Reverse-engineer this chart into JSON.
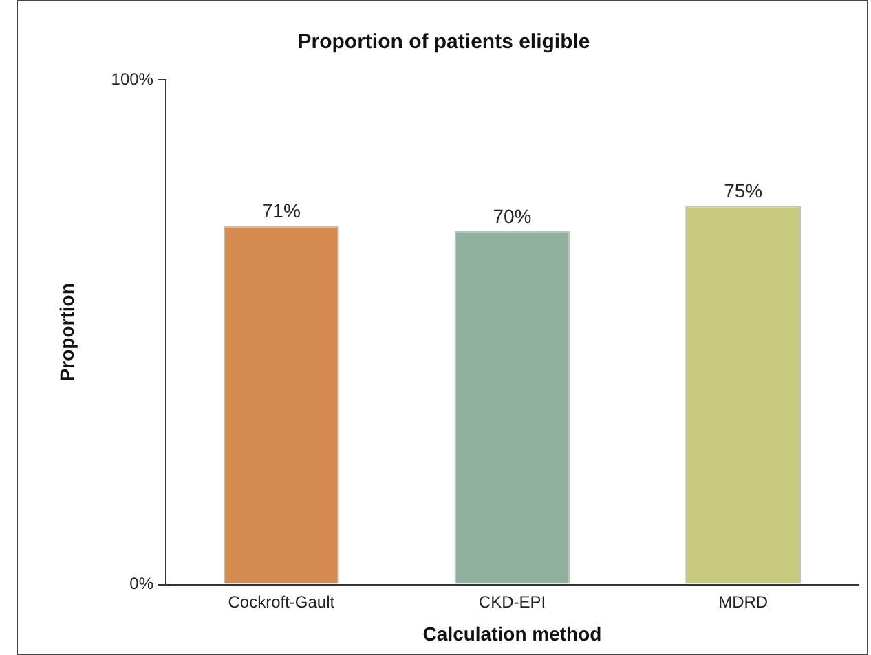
{
  "chart_data": {
    "type": "bar",
    "title": "Proportion of patients eligible",
    "xlabel": "Calculation method",
    "ylabel": "Proportion",
    "categories": [
      "Cockroft-Gault",
      "CKD-EPI",
      "MDRD"
    ],
    "values": [
      71,
      70,
      75
    ],
    "colors": [
      "#d68c4e",
      "#8fb09d",
      "#c8ca80"
    ],
    "value_labels": [
      "71%",
      "70%",
      "75%"
    ],
    "ylim": [
      0,
      100
    ],
    "yticks": [
      {
        "value": 0,
        "label": "0%"
      },
      {
        "value": 100,
        "label": "100%"
      }
    ],
    "grid": false,
    "legend": false
  }
}
